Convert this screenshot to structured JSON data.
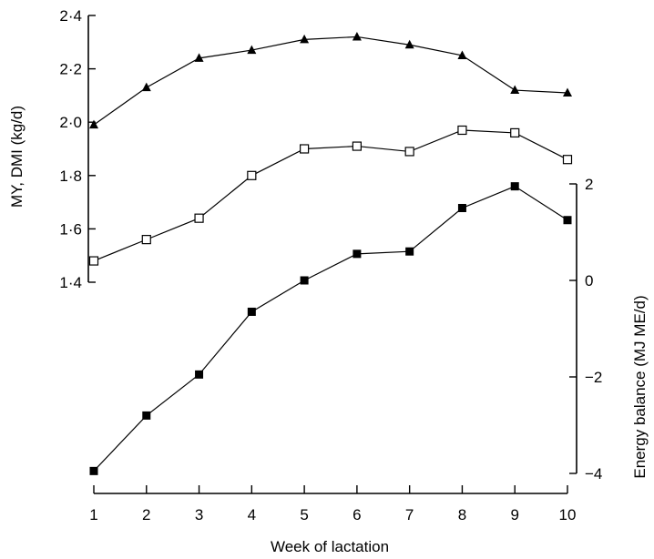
{
  "chart_data": {
    "type": "line",
    "title": "",
    "xlabel": "Week of lactation",
    "ylabel_left": "MY, DMI (kg/d)",
    "ylabel_right": "Energy balance (MJ ME/d)",
    "x": [
      1,
      2,
      3,
      4,
      5,
      6,
      7,
      8,
      9,
      10
    ],
    "xlim": [
      1,
      10
    ],
    "ylim_left": [
      1.4,
      2.4
    ],
    "ylim_right": [
      -4,
      2
    ],
    "x_ticks": [
      "1",
      "2",
      "3",
      "4",
      "5",
      "6",
      "7",
      "8",
      "9",
      "10"
    ],
    "y_ticks_left": [
      {
        "value": 1.4,
        "label": "1·4"
      },
      {
        "value": 1.6,
        "label": "1·6"
      },
      {
        "value": 1.8,
        "label": "1·8"
      },
      {
        "value": 2.0,
        "label": "2·0"
      },
      {
        "value": 2.2,
        "label": "2·2"
      },
      {
        "value": 2.4,
        "label": "2·4"
      }
    ],
    "y_ticks_right": [
      {
        "value": -4,
        "label": "−4"
      },
      {
        "value": -2,
        "label": "−2"
      },
      {
        "value": 0,
        "label": "0"
      },
      {
        "value": 2,
        "label": "2"
      }
    ],
    "grid": false,
    "legend": "none",
    "series": [
      {
        "marker": "filled-triangle",
        "axis": "left",
        "values": [
          1.99,
          2.13,
          2.24,
          2.27,
          2.31,
          2.32,
          2.29,
          2.25,
          2.12,
          2.11
        ]
      },
      {
        "marker": "open-square",
        "axis": "left",
        "values": [
          1.48,
          1.56,
          1.64,
          1.8,
          1.9,
          1.91,
          1.89,
          1.97,
          1.96,
          1.86
        ]
      },
      {
        "marker": "filled-square",
        "axis": "right",
        "values": [
          -3.95,
          -2.8,
          -1.95,
          -0.65,
          0.0,
          0.55,
          0.6,
          1.5,
          1.95,
          1.25
        ]
      }
    ]
  }
}
